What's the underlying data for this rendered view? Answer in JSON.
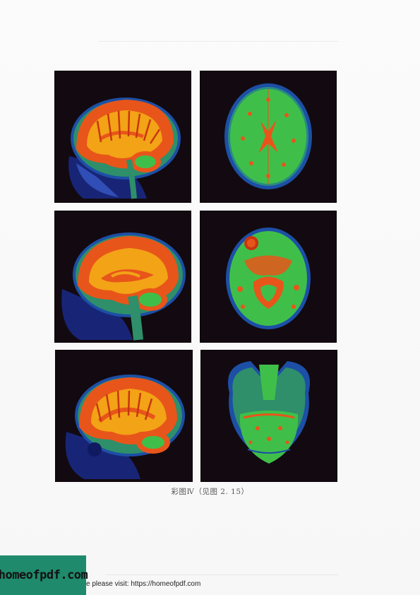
{
  "figure": {
    "caption": "彩图Ⅳ（见图 2. 15）",
    "panels": [
      {
        "view": "sagittal"
      },
      {
        "view": "axial"
      },
      {
        "view": "sagittal"
      },
      {
        "view": "axial"
      },
      {
        "view": "sagittal"
      },
      {
        "view": "axial"
      }
    ]
  },
  "footer": {
    "logo_text": "homeofpdf.com",
    "notice": "e please visit: https://homeofpdf.com"
  },
  "colors": {
    "background": "#120a10",
    "gray_matter": "#e8551a",
    "white_matter": "#f2a316",
    "axial_tissue": "#3fbf4a",
    "csf": "#2a4fbf",
    "logo_bg": "#1f8a6c"
  }
}
